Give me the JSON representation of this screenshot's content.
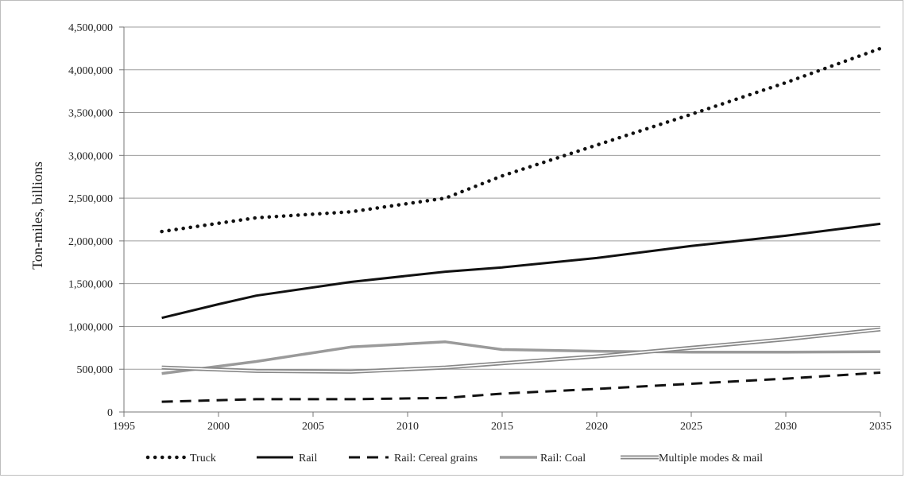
{
  "chart_data": {
    "type": "line",
    "title": "",
    "xlabel": "",
    "ylabel": "Ton-miles, billions",
    "xlim": [
      1995,
      2035
    ],
    "ylim": [
      0,
      4500000
    ],
    "x_ticks": [
      1995,
      2000,
      2005,
      2010,
      2015,
      2020,
      2025,
      2030,
      2035
    ],
    "x_tick_labels": [
      "1995",
      "2000",
      "2005",
      "2010",
      "2015",
      "2020",
      "2025",
      "2030",
      "2035"
    ],
    "y_ticks": [
      0,
      500000,
      1000000,
      1500000,
      2000000,
      2500000,
      3000000,
      3500000,
      4000000,
      4500000
    ],
    "y_tick_labels": [
      "0",
      "500,000",
      "1,000,000",
      "1,500,000",
      "2,000,000",
      "2,500,000",
      "3,000,000",
      "3,500,000",
      "4,000,000",
      "4,500,000"
    ],
    "grid": "horizontal",
    "legend_position": "bottom",
    "series": [
      {
        "name": "Truck",
        "style": "dotted",
        "color": "#111111",
        "points": [
          [
            1997,
            2110000
          ],
          [
            2002,
            2270000
          ],
          [
            2007,
            2340000
          ],
          [
            2012,
            2500000
          ],
          [
            2015,
            2760000
          ],
          [
            2020,
            3120000
          ],
          [
            2025,
            3480000
          ],
          [
            2030,
            3850000
          ],
          [
            2035,
            4250000
          ]
        ]
      },
      {
        "name": "Rail",
        "style": "solid",
        "color": "#111111",
        "points": [
          [
            1997,
            1100000
          ],
          [
            2000,
            1260000
          ],
          [
            2002,
            1360000
          ],
          [
            2007,
            1520000
          ],
          [
            2012,
            1640000
          ],
          [
            2015,
            1690000
          ],
          [
            2020,
            1800000
          ],
          [
            2025,
            1940000
          ],
          [
            2030,
            2060000
          ],
          [
            2035,
            2200000
          ]
        ]
      },
      {
        "name": "Rail: Cereal grains",
        "style": "dashed",
        "color": "#111111",
        "points": [
          [
            1997,
            120000
          ],
          [
            2002,
            150000
          ],
          [
            2007,
            150000
          ],
          [
            2012,
            165000
          ],
          [
            2015,
            215000
          ],
          [
            2020,
            270000
          ],
          [
            2025,
            330000
          ],
          [
            2030,
            390000
          ],
          [
            2035,
            460000
          ]
        ]
      },
      {
        "name": "Rail: Coal",
        "style": "solid-gray",
        "color": "#9a9a9a",
        "points": [
          [
            1997,
            450000
          ],
          [
            2002,
            590000
          ],
          [
            2007,
            760000
          ],
          [
            2012,
            820000
          ],
          [
            2015,
            730000
          ],
          [
            2020,
            710000
          ],
          [
            2025,
            700000
          ],
          [
            2030,
            700000
          ],
          [
            2035,
            705000
          ]
        ]
      },
      {
        "name": "Multiple modes & mail",
        "style": "double",
        "color": "#888888",
        "points": [
          [
            1997,
            520000
          ],
          [
            2002,
            480000
          ],
          [
            2007,
            470000
          ],
          [
            2012,
            520000
          ],
          [
            2015,
            570000
          ],
          [
            2020,
            650000
          ],
          [
            2025,
            750000
          ],
          [
            2030,
            850000
          ],
          [
            2035,
            965000
          ]
        ]
      }
    ]
  }
}
